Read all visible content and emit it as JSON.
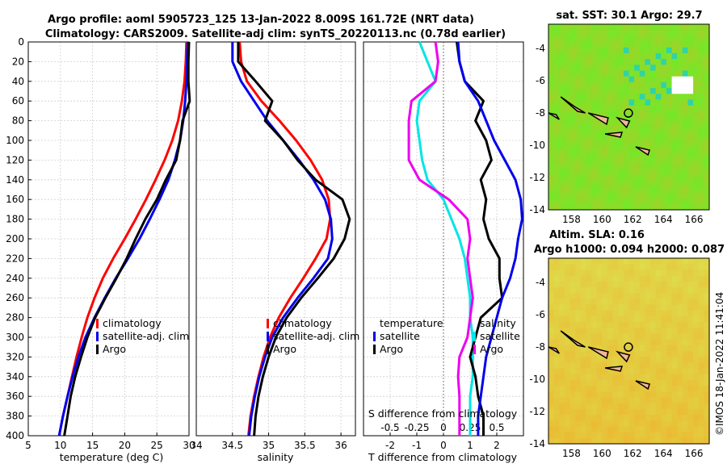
{
  "title_line1": "Argo profile: aoml 5905723_125 13-Jan-2022 8.009S 161.72E (NRT data)",
  "title_line2": "Climatology: CARS2009. Satellite-adj clim: synTS_20220113.nc (0.78d earlier)",
  "depth_ticks": [
    0,
    20,
    40,
    60,
    80,
    100,
    120,
    140,
    160,
    180,
    200,
    220,
    240,
    260,
    280,
    300,
    320,
    340,
    360,
    380,
    400
  ],
  "colors": {
    "climatology": "#ff0000",
    "satellite": "#0000ee",
    "argo": "#000000",
    "cyan": "#00e5e5",
    "magenta": "#ee00ee"
  },
  "chart_data": [
    {
      "type": "line",
      "name": "temperature-panel",
      "xlabel": "temperature (deg C)",
      "xlim": [
        5,
        30
      ],
      "ylim": [
        0,
        400
      ],
      "xticks": [
        5,
        10,
        15,
        20,
        25,
        30
      ],
      "legend": [
        "climatology",
        "satellite-adj. clim",
        "Argo"
      ],
      "series": [
        {
          "name": "climatology",
          "color": "#ff0000",
          "x": [
            29.6,
            29.5,
            29.3,
            28.9,
            28.3,
            27.4,
            26.2,
            24.8,
            23.3,
            21.7,
            20.0,
            18.2,
            16.6,
            15.3,
            14.2,
            13.3,
            12.5,
            11.8,
            11.1,
            10.4,
            9.8
          ],
          "y": [
            0,
            20,
            40,
            60,
            80,
            100,
            120,
            140,
            160,
            180,
            200,
            220,
            240,
            260,
            280,
            300,
            320,
            340,
            360,
            380,
            400
          ]
        },
        {
          "name": "satellite",
          "color": "#0000ee",
          "x": [
            29.8,
            29.7,
            29.6,
            29.4,
            29.1,
            28.6,
            27.8,
            26.8,
            25.4,
            23.9,
            22.3,
            20.5,
            18.6,
            16.9,
            15.3,
            13.9,
            12.8,
            11.9,
            11.1,
            10.4,
            9.8
          ],
          "y": [
            0,
            20,
            40,
            60,
            80,
            100,
            120,
            140,
            160,
            180,
            200,
            220,
            240,
            260,
            280,
            300,
            320,
            340,
            360,
            380,
            400
          ]
        },
        {
          "name": "Argo",
          "color": "#000000",
          "x": [
            30.0,
            29.9,
            29.9,
            30.1,
            29.0,
            28.6,
            28.0,
            26.4,
            25.0,
            23.2,
            21.7,
            20.3,
            18.7,
            17.0,
            15.4,
            14.2,
            13.2,
            12.3,
            11.6,
            11.1,
            10.6
          ],
          "y": [
            0,
            20,
            40,
            60,
            80,
            100,
            120,
            140,
            160,
            180,
            200,
            220,
            240,
            260,
            280,
            300,
            320,
            340,
            360,
            380,
            400
          ]
        }
      ]
    },
    {
      "type": "line",
      "name": "salinity-panel",
      "xlabel": "salinity",
      "xlim": [
        34,
        36.2
      ],
      "ylim": [
        0,
        400
      ],
      "xticks": [
        34,
        34.5,
        35,
        35.5,
        36
      ],
      "xticklabels": [
        "34",
        "34.5",
        "35",
        "35.5",
        "36"
      ],
      "legend": [
        "climatology",
        "satellite-adj. clim",
        "Argo"
      ],
      "series": [
        {
          "name": "climatology",
          "color": "#ff0000",
          "x": [
            34.6,
            34.62,
            34.7,
            34.9,
            35.15,
            35.38,
            35.58,
            35.74,
            35.83,
            35.85,
            35.8,
            35.65,
            35.48,
            35.3,
            35.14,
            35.02,
            34.93,
            34.86,
            34.8,
            34.75,
            34.72
          ],
          "y": [
            0,
            20,
            40,
            60,
            80,
            100,
            120,
            140,
            160,
            180,
            200,
            220,
            240,
            260,
            280,
            300,
            320,
            340,
            360,
            380,
            400
          ]
        },
        {
          "name": "satellite",
          "color": "#0000ee",
          "x": [
            34.5,
            34.5,
            34.62,
            34.8,
            34.98,
            35.2,
            35.42,
            35.62,
            35.78,
            35.86,
            35.88,
            35.82,
            35.62,
            35.4,
            35.2,
            35.05,
            34.95,
            34.87,
            34.81,
            34.76,
            34.73
          ],
          "y": [
            0,
            20,
            40,
            60,
            80,
            100,
            120,
            140,
            160,
            180,
            200,
            220,
            240,
            260,
            280,
            300,
            320,
            340,
            360,
            380,
            400
          ]
        },
        {
          "name": "Argo",
          "color": "#000000",
          "x": [
            34.58,
            34.58,
            34.82,
            35.05,
            34.95,
            35.2,
            35.4,
            35.65,
            36.02,
            36.12,
            36.05,
            35.9,
            35.68,
            35.45,
            35.25,
            35.1,
            35.0,
            34.92,
            34.86,
            34.82,
            34.8
          ],
          "y": [
            0,
            20,
            40,
            60,
            80,
            100,
            120,
            140,
            160,
            180,
            200,
            220,
            240,
            260,
            280,
            300,
            320,
            340,
            360,
            380,
            400
          ]
        }
      ]
    },
    {
      "type": "line",
      "name": "difference-panel",
      "xlabel": "T difference from climatology",
      "xlabel_top": "S difference from climatology",
      "xlim": [
        -3,
        3
      ],
      "ylim": [
        0,
        400
      ],
      "xticks": [
        -2,
        -1,
        0,
        1,
        2
      ],
      "xticks_top": [
        -0.5,
        -0.25,
        0,
        0.25,
        0.5
      ],
      "xticklabels_top": [
        "-0.5",
        "-0.25",
        "0",
        "0.25",
        "0.5"
      ],
      "legend_temperature": [
        "temperature",
        "satellite",
        "Argo"
      ],
      "legend_salinity": [
        "salinity",
        "satellite",
        "Argo"
      ],
      "series": [
        {
          "name": "temperature satellite",
          "color": "#00e5e5",
          "x": [
            -0.9,
            -0.6,
            -0.3,
            -0.9,
            -1.0,
            -0.9,
            -0.8,
            -0.6,
            0.0,
            0.3,
            0.6,
            0.8,
            0.9,
            1.0,
            1.0,
            1.1,
            1.1,
            1.1,
            1.0,
            1.0,
            1.0
          ],
          "y": [
            0,
            20,
            40,
            60,
            80,
            100,
            120,
            140,
            160,
            180,
            200,
            220,
            240,
            260,
            280,
            300,
            320,
            340,
            360,
            380,
            400
          ]
        },
        {
          "name": "temperature Argo",
          "color": "#000000",
          "x": [
            0.5,
            0.6,
            0.8,
            1.5,
            1.2,
            1.6,
            1.8,
            1.4,
            1.6,
            1.5,
            1.7,
            2.1,
            2.1,
            2.2,
            1.4,
            1.2,
            1.0,
            1.2,
            1.3,
            1.5,
            1.5
          ],
          "y": [
            0,
            20,
            40,
            60,
            80,
            100,
            120,
            140,
            160,
            180,
            200,
            220,
            240,
            260,
            280,
            300,
            320,
            340,
            360,
            380,
            400
          ]
        },
        {
          "name": "salinity satellite",
          "color": "#0000ee",
          "x": [
            0.55,
            0.6,
            0.8,
            1.3,
            1.6,
            1.9,
            2.3,
            2.7,
            2.9,
            2.95,
            2.8,
            2.7,
            2.5,
            2.2,
            2.0,
            1.8,
            1.6,
            1.5,
            1.4,
            1.3,
            1.3
          ],
          "y": [
            0,
            20,
            40,
            60,
            80,
            100,
            120,
            140,
            160,
            180,
            200,
            220,
            240,
            260,
            280,
            300,
            320,
            340,
            360,
            380,
            400
          ]
        },
        {
          "name": "salinity Argo",
          "color": "#ee00ee",
          "x": [
            -0.3,
            -0.2,
            -0.3,
            -1.2,
            -1.3,
            -1.3,
            -1.3,
            -0.9,
            0.2,
            0.9,
            1.0,
            0.9,
            1.0,
            1.1,
            1.0,
            0.9,
            0.6,
            0.55,
            0.6,
            0.6,
            0.6
          ],
          "y": [
            0,
            20,
            40,
            60,
            80,
            100,
            120,
            140,
            160,
            180,
            200,
            220,
            240,
            260,
            280,
            300,
            320,
            340,
            360,
            380,
            400
          ]
        }
      ]
    },
    {
      "type": "heatmap",
      "name": "sst-map",
      "title": "sat. SST: 30.1  Argo: 29.7",
      "xlim": [
        156.5,
        167
      ],
      "ylim": [
        -14,
        -2.5
      ],
      "xticks": [
        158,
        160,
        162,
        164,
        166
      ],
      "yticks": [
        -4,
        -6,
        -8,
        -10,
        -12,
        -14
      ],
      "marker": {
        "lon": 161.72,
        "lat": -8.009
      }
    },
    {
      "type": "heatmap",
      "name": "sla-map",
      "title": "Altim. SLA: 0.16",
      "subtitle": "Argo h1000: 0.094 h2000: 0.087",
      "xlim": [
        156.5,
        167
      ],
      "ylim": [
        -14,
        -2.5
      ],
      "xticks": [
        158,
        160,
        162,
        164,
        166
      ],
      "yticks": [
        -4,
        -6,
        -8,
        -10,
        -12,
        -14
      ],
      "marker": {
        "lon": 161.72,
        "lat": -8.009
      }
    }
  ],
  "watermark": "©IMOS 18-Jan-2022 11:41:04"
}
